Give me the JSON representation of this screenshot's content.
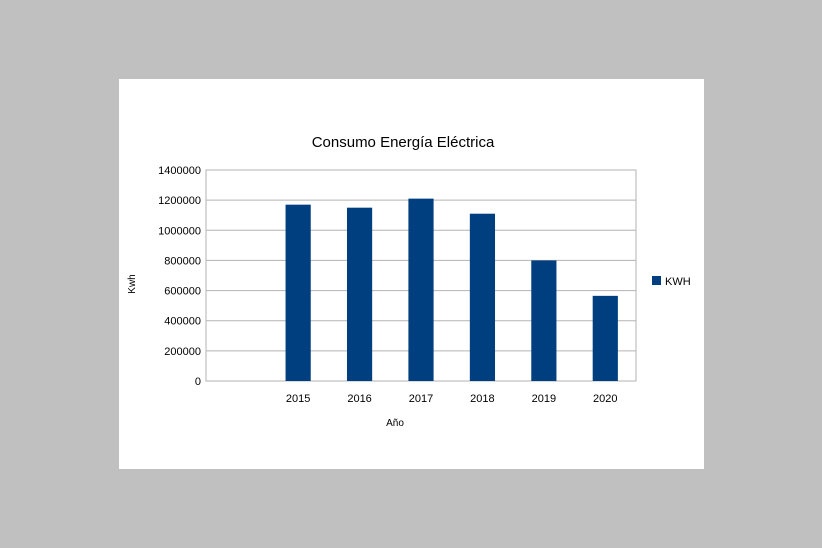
{
  "chart_data": {
    "type": "bar",
    "title": "Consumo Energía Eléctrica",
    "xlabel": "Año",
    "ylabel": "Kwh",
    "categories": [
      "",
      "2015",
      "2016",
      "2017",
      "2018",
      "2019",
      "2020"
    ],
    "series": [
      {
        "name": "KWH",
        "values": [
          null,
          1170000,
          1150000,
          1210000,
          1110000,
          800000,
          565000
        ]
      }
    ],
    "ylim": [
      0,
      1400000
    ],
    "yticks": [
      "0",
      "200000",
      "400000",
      "600000",
      "800000",
      "1000000",
      "1200000",
      "1400000"
    ],
    "grid": true,
    "legend_position": "right",
    "colors": {
      "bar": "#003f7f",
      "grid": "#b3b3b3",
      "frame": "#b3b3b3",
      "background": "#c0c0c0",
      "panel": "#ffffff"
    }
  }
}
